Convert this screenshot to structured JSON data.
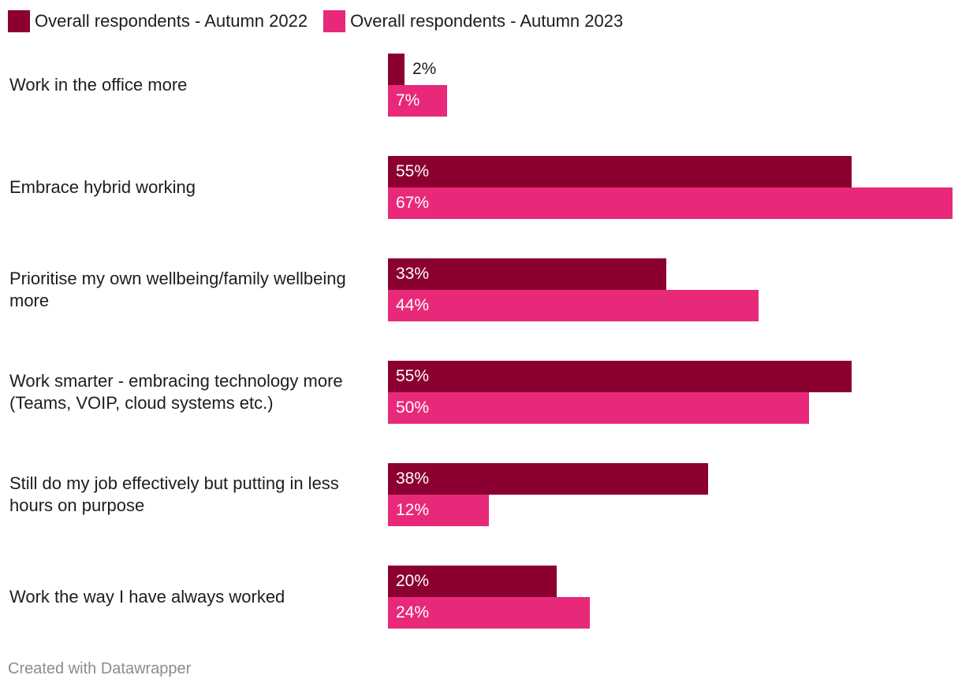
{
  "chart_data": {
    "type": "bar",
    "orientation": "horizontal",
    "categories": [
      "Work in the office more",
      "Embrace hybrid working",
      "Prioritise my own wellbeing/family wellbeing more",
      "Work smarter - embracing technology more (Teams, VOIP, cloud systems etc.)",
      "Still do my job effectively but putting in less hours on purpose",
      "Work the way I have always worked"
    ],
    "series": [
      {
        "name": "Overall respondents - Autumn 2022",
        "color": "#8b0030",
        "values": [
          2,
          55,
          33,
          55,
          38,
          20
        ]
      },
      {
        "name": "Overall respondents - Autumn 2023",
        "color": "#e8297a",
        "values": [
          7,
          67,
          44,
          50,
          12,
          24
        ]
      }
    ],
    "value_suffix": "%",
    "xlim": [
      0,
      67
    ],
    "legend_position": "top-left",
    "grid": false
  },
  "footer": {
    "credit": "Created with Datawrapper"
  }
}
